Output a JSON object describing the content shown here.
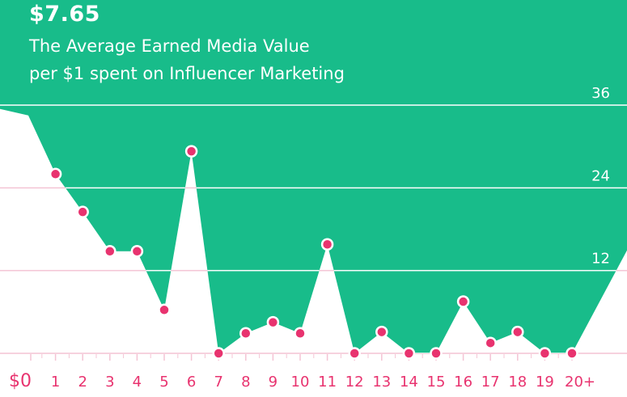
{
  "headline": "$7.65",
  "subtitle_line1": "The Average Earned Media Value",
  "subtitle_line2": "per $1 spent on Influencer Marketing",
  "colors": {
    "fill": "#18BC8A",
    "marker": "#E8336F",
    "gridline_on_fill": "#ffffff",
    "gridline_on_white": "#F4C4D4",
    "tick_label": "#E8336F",
    "text_on_fill": "#ffffff"
  },
  "chart_data": {
    "type": "area",
    "title": "The Average Earned Media Value per $1 spent on Influencer Marketing",
    "categories": [
      "$0",
      "1",
      "2",
      "3",
      "4",
      "5",
      "6",
      "7",
      "8",
      "9",
      "10",
      "11",
      "12",
      "13",
      "14",
      "15",
      "16",
      "17",
      "18",
      "19",
      "20+"
    ],
    "series": [
      {
        "values": [
          34.5,
          26,
          20.5,
          14.8,
          14.8,
          6.3,
          29.3,
          0,
          2.9,
          4.5,
          2.9,
          15.8,
          0,
          3.1,
          0,
          0,
          7.5,
          1.5,
          3.1,
          0,
          0
        ]
      }
    ],
    "yticks": [
      0,
      12,
      24,
      36
    ],
    "ylim": [
      0,
      36
    ],
    "grid": true,
    "markers": "all points except $0"
  }
}
